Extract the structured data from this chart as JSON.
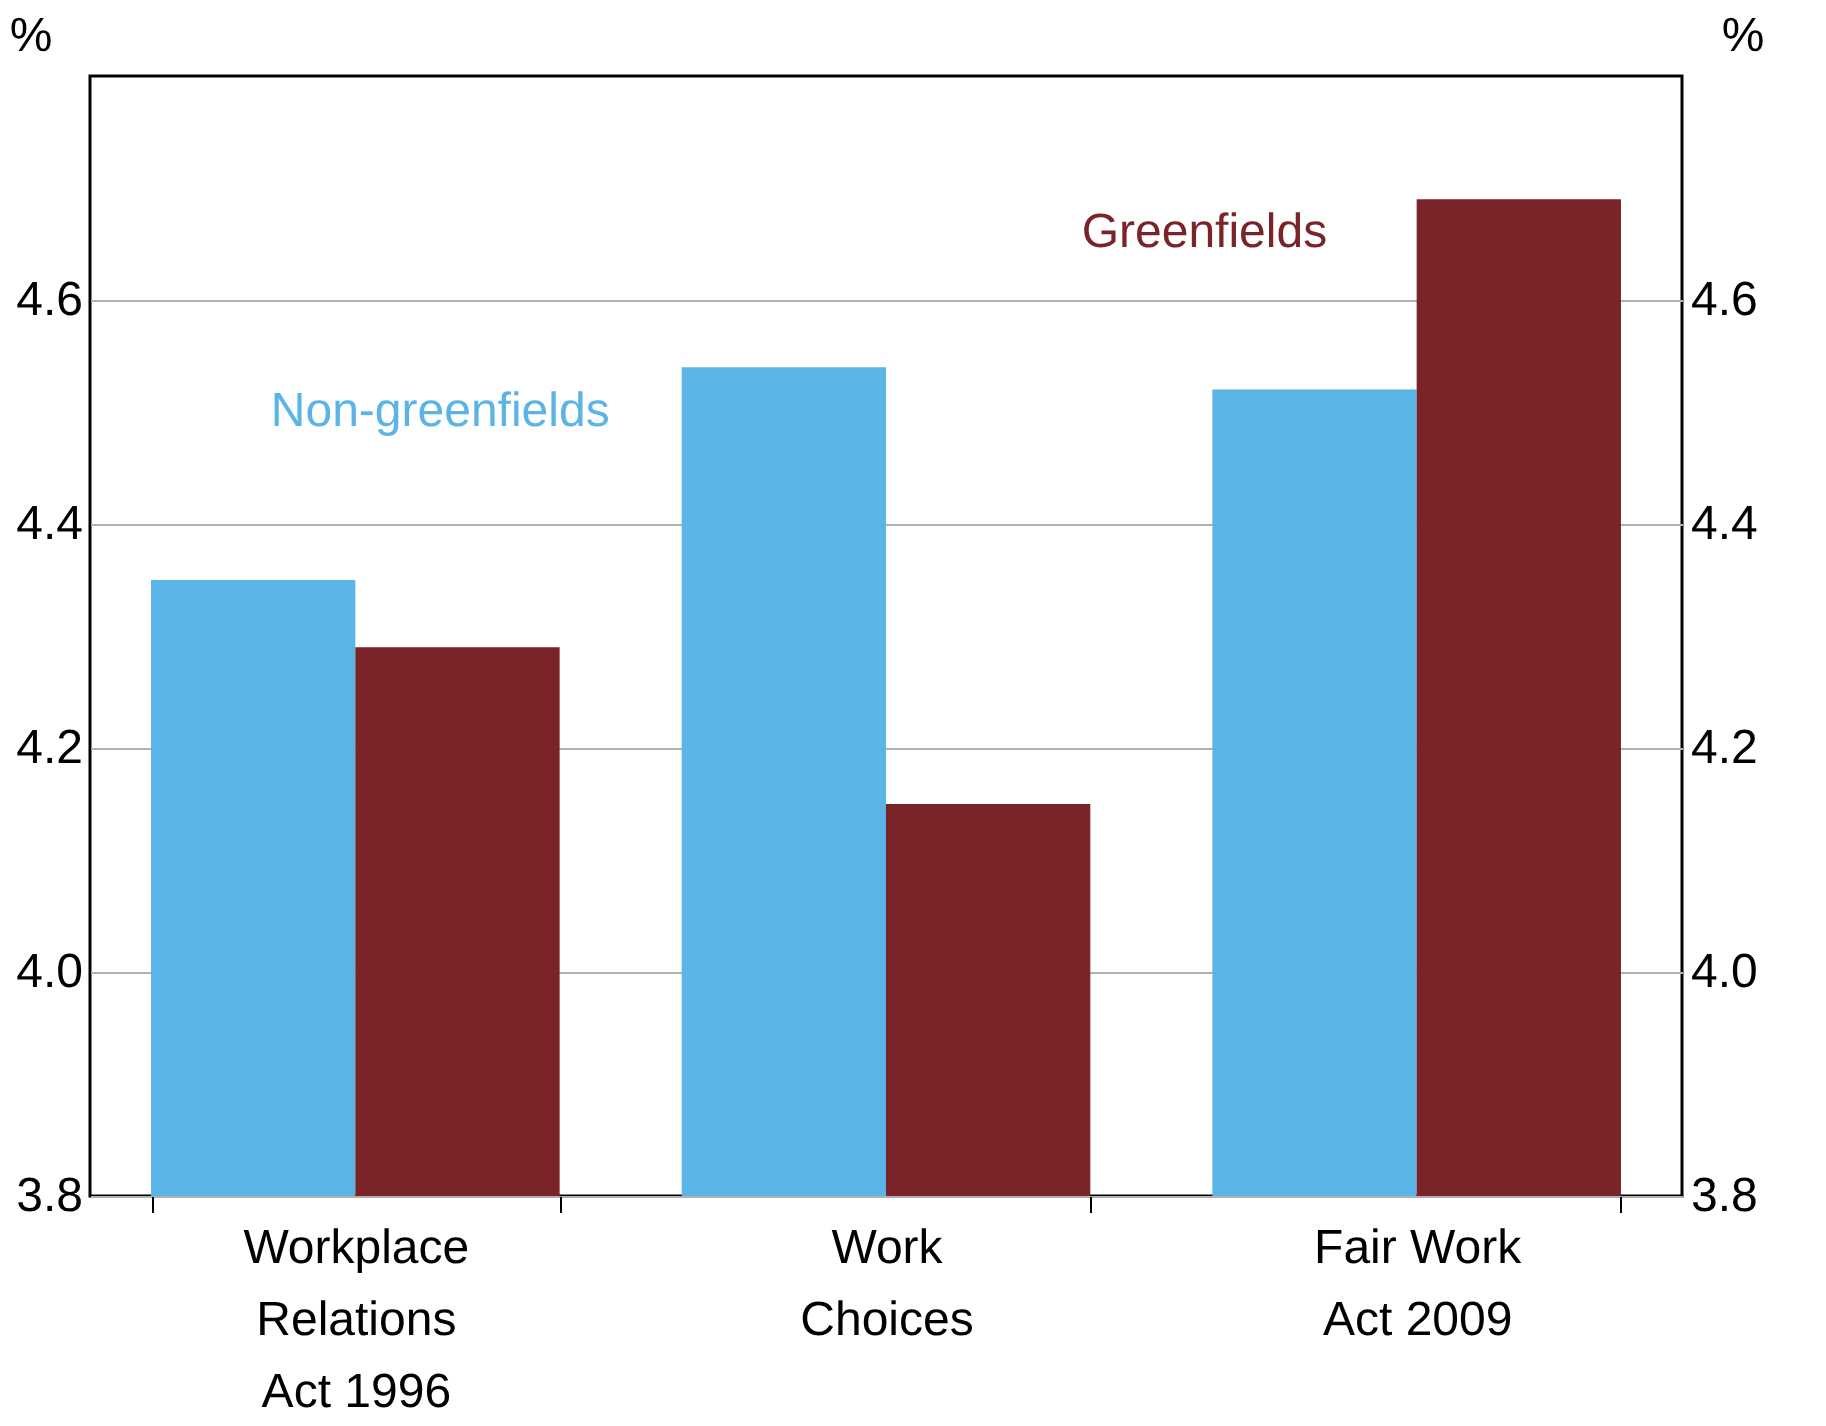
{
  "chart_data": {
    "type": "bar",
    "ylabel": "%",
    "y2label": "%",
    "categories": [
      "Workplace Relations Act 1996",
      "Work Choices",
      "Fair Work Act 2009"
    ],
    "series": [
      {
        "name": "Non-greenfields",
        "color": "#5ab4e5",
        "values": [
          4.35,
          4.54,
          4.52
        ]
      },
      {
        "name": "Greenfields",
        "color": "#7a2328",
        "values": [
          4.29,
          4.15,
          4.69
        ]
      }
    ],
    "ylim": [
      3.8,
      4.8
    ],
    "yticks": [
      3.8,
      {
        "value": 4,
        "label": "4.0"
      },
      4.2,
      4.4,
      4.6
    ],
    "y2lim": [
      3.8,
      4.8
    ],
    "y2ticks": [
      3.8,
      {
        "value": 4,
        "label": "4.0"
      },
      4.2,
      4.4,
      4.6
    ],
    "grid": "y",
    "legend": false
  }
}
